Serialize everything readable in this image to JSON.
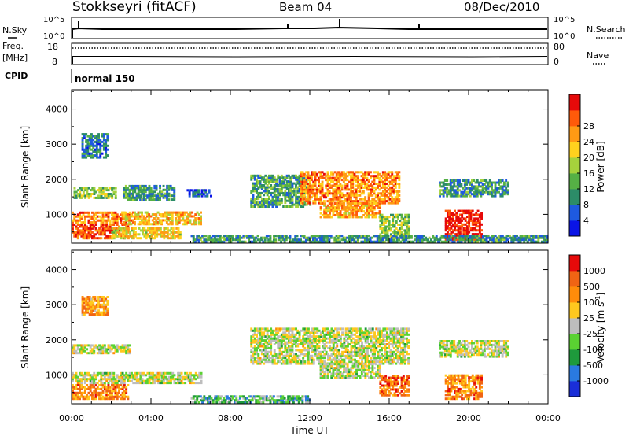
{
  "header": {
    "station": "Stokkseyri (fitACF)",
    "beam": "Beam 04",
    "date": "08/Dec/2010"
  },
  "strip": {
    "nsky_label": "N.Sky",
    "nsky_ticks": [
      "10^5",
      "10^0"
    ],
    "nsearch_label": "N.Search",
    "nsearch_ticks": [
      "10^5",
      "10^0"
    ],
    "freq_label": "Freq.",
    "freq_unit": "[MHz]",
    "freq_ticks": [
      "18",
      "8"
    ],
    "nave_label": "Nave",
    "nave_ticks": [
      "80",
      "0"
    ],
    "cpid_label": "CPID",
    "cpid_value": "normal 150"
  },
  "chart_data": [
    {
      "type": "heatmap",
      "name": "power",
      "ylabel": "Slant Range [km]",
      "ylim": [
        180,
        4550
      ],
      "xlim": [
        0,
        24
      ],
      "yticks": [
        "1000",
        "2000",
        "3000",
        "4000"
      ],
      "colorbar_label": "Power [dB]",
      "colorbar_ticks": [
        "4",
        "8",
        "12",
        "16",
        "20",
        "24",
        "28"
      ],
      "colorbar_colors": [
        "#0a14e6",
        "#1e5ae0",
        "#2c8c68",
        "#55b045",
        "#a6d23c",
        "#ffd21e",
        "#ff9a14",
        "#ff5a0a",
        "#e60a0a"
      ],
      "regions": [
        {
          "t0": 0.0,
          "t1": 2.8,
          "r0": 300,
          "r1": 700,
          "level": 0.85
        },
        {
          "t0": 0.0,
          "t1": 3.0,
          "r0": 750,
          "r1": 1050,
          "level": 0.75
        },
        {
          "t0": 0.1,
          "t1": 2.2,
          "r0": 1450,
          "r1": 1750,
          "level": 0.45
        },
        {
          "t0": 0.5,
          "t1": 1.8,
          "r0": 2600,
          "r1": 3300,
          "level": 0.25
        },
        {
          "t0": 2.5,
          "t1": 6.5,
          "r0": 700,
          "r1": 1050,
          "level": 0.65
        },
        {
          "t0": 2.0,
          "t1": 5.5,
          "r0": 300,
          "r1": 600,
          "level": 0.6
        },
        {
          "t0": 2.6,
          "t1": 5.2,
          "r0": 1400,
          "r1": 1800,
          "level": 0.3
        },
        {
          "t0": 5.8,
          "t1": 7.0,
          "r0": 1500,
          "r1": 1700,
          "level": 0.15
        },
        {
          "t0": 9.0,
          "t1": 12.0,
          "r0": 1200,
          "r1": 2100,
          "level": 0.35
        },
        {
          "t0": 11.5,
          "t1": 16.5,
          "r0": 1300,
          "r1": 2200,
          "level": 0.75
        },
        {
          "t0": 12.5,
          "t1": 15.5,
          "r0": 900,
          "r1": 1300,
          "level": 0.7
        },
        {
          "t0": 15.5,
          "t1": 17.0,
          "r0": 300,
          "r1": 1000,
          "level": 0.45
        },
        {
          "t0": 18.8,
          "t1": 20.6,
          "r0": 250,
          "r1": 1100,
          "level": 0.95
        },
        {
          "t0": 18.5,
          "t1": 22.0,
          "r0": 1500,
          "r1": 1950,
          "level": 0.3
        },
        {
          "t0": 6.0,
          "t1": 24.0,
          "r0": 200,
          "r1": 380,
          "level": 0.3
        }
      ]
    },
    {
      "type": "heatmap",
      "name": "velocity",
      "ylabel": "Slant Range [km]",
      "xlabel": "Time UT",
      "ylim": [
        180,
        4550
      ],
      "xlim": [
        0,
        24
      ],
      "yticks": [
        "1000",
        "2000",
        "3000",
        "4000"
      ],
      "xticks": [
        "00:00",
        "04:00",
        "08:00",
        "12:00",
        "16:00",
        "20:00",
        "00:00"
      ],
      "colorbar_label": "Velocity [m s",
      "colorbar_label_sup": "-1",
      "colorbar_label_end": "]",
      "colorbar_ticks": [
        "1000",
        "500",
        "100",
        "25",
        "-25",
        "-100",
        "-500",
        "-1000"
      ],
      "colorbar_colors": [
        "#1a2ed8",
        "#2a7ae0",
        "#1e9a3c",
        "#5ad232",
        "#bdbdbd",
        "#ffc81e",
        "#ff8c0a",
        "#f06414",
        "#e60a0a"
      ],
      "regions": [
        {
          "t0": 0.0,
          "t1": 2.8,
          "r0": 300,
          "r1": 700,
          "level": 0.75
        },
        {
          "t0": 0.5,
          "t1": 1.8,
          "r0": 2700,
          "r1": 3200,
          "level": 0.7
        },
        {
          "t0": 0.0,
          "t1": 6.5,
          "r0": 750,
          "r1": 1050,
          "level": 0.5
        },
        {
          "t0": 0.0,
          "t1": 3.0,
          "r0": 1600,
          "r1": 1850,
          "level": 0.5
        },
        {
          "t0": 9.0,
          "t1": 17.0,
          "r0": 1300,
          "r1": 2300,
          "level": 0.5
        },
        {
          "t0": 12.5,
          "t1": 15.5,
          "r0": 900,
          "r1": 1300,
          "level": 0.5
        },
        {
          "t0": 15.5,
          "t1": 17.0,
          "r0": 400,
          "r1": 1000,
          "level": 0.8
        },
        {
          "t0": 18.8,
          "t1": 20.6,
          "r0": 300,
          "r1": 1000,
          "level": 0.75
        },
        {
          "t0": 18.5,
          "t1": 22.0,
          "r0": 1500,
          "r1": 1950,
          "level": 0.5
        },
        {
          "t0": 6.0,
          "t1": 12.0,
          "r0": 200,
          "r1": 420,
          "level": 0.35
        }
      ]
    }
  ]
}
